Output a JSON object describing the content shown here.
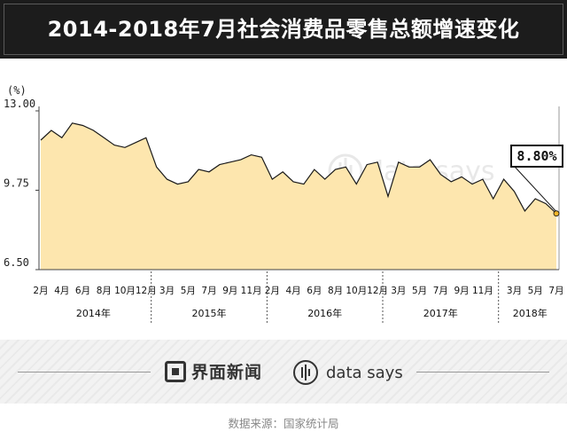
{
  "title": "2014-2018年7月社会消费品零售总额增速变化",
  "chart_data": {
    "type": "area",
    "unit": "(%)",
    "ylim": [
      6.5,
      13.0
    ],
    "yticks": [
      "13.00",
      "9.75",
      "6.50"
    ],
    "grid": false,
    "x": [
      "2014-02",
      "2014-03",
      "2014-04",
      "2014-05",
      "2014-06",
      "2014-07",
      "2014-08",
      "2014-09",
      "2014-10",
      "2014-11",
      "2014-12",
      "2015-02",
      "2015-03",
      "2015-04",
      "2015-05",
      "2015-06",
      "2015-07",
      "2015-08",
      "2015-09",
      "2015-10",
      "2015-11",
      "2015-12",
      "2016-02",
      "2016-03",
      "2016-04",
      "2016-05",
      "2016-06",
      "2016-07",
      "2016-08",
      "2016-09",
      "2016-10",
      "2016-11",
      "2016-12",
      "2017-02",
      "2017-03",
      "2017-04",
      "2017-05",
      "2017-06",
      "2017-07",
      "2017-08",
      "2017-09",
      "2017-10",
      "2017-11",
      "2017-12",
      "2018-02",
      "2018-03",
      "2018-04",
      "2018-05",
      "2018-06",
      "2018-07"
    ],
    "values": [
      11.8,
      12.2,
      11.9,
      12.5,
      12.4,
      12.2,
      11.9,
      11.6,
      11.5,
      11.7,
      11.9,
      10.7,
      10.2,
      10.0,
      10.1,
      10.6,
      10.5,
      10.8,
      10.9,
      11.0,
      11.2,
      11.1,
      10.2,
      10.5,
      10.1,
      10.0,
      10.6,
      10.2,
      10.6,
      10.7,
      10.0,
      10.8,
      10.9,
      9.5,
      10.9,
      10.7,
      10.7,
      11.0,
      10.4,
      10.1,
      10.3,
      10.0,
      10.2,
      9.4,
      10.2,
      9.7,
      8.9,
      9.4,
      9.2,
      8.8
    ],
    "month_labels": [
      "2月",
      "4月",
      "6月",
      "8月",
      "10月",
      "12月",
      "3月",
      "5月",
      "7月",
      "9月",
      "11月",
      "2月",
      "4月",
      "6月",
      "8月",
      "10月",
      "12月",
      "3月",
      "5月",
      "7月",
      "9月",
      "11月",
      "3月",
      "5月",
      "7月"
    ],
    "month_label_indices": [
      0,
      2,
      4,
      6,
      8,
      10,
      12,
      14,
      16,
      18,
      20,
      22,
      24,
      26,
      28,
      30,
      32,
      34,
      36,
      38,
      40,
      42,
      45,
      47,
      49
    ],
    "years": [
      {
        "label": "2014年",
        "start": 0,
        "end": 10
      },
      {
        "label": "2015年",
        "start": 11,
        "end": 21
      },
      {
        "label": "2016年",
        "start": 22,
        "end": 32
      },
      {
        "label": "2017年",
        "start": 33,
        "end": 43
      },
      {
        "label": "2018年",
        "start": 44,
        "end": 49
      }
    ],
    "callout": {
      "label": "8.80%",
      "index": 49
    },
    "colors": {
      "fill": "#fde6ae",
      "line": "#1a1a1a",
      "marker": "#f0b429",
      "axis": "#444444"
    }
  },
  "footer": {
    "brand_left": "界面新闻",
    "brand_right": "data says",
    "source": "数据来源：国家统计局"
  }
}
